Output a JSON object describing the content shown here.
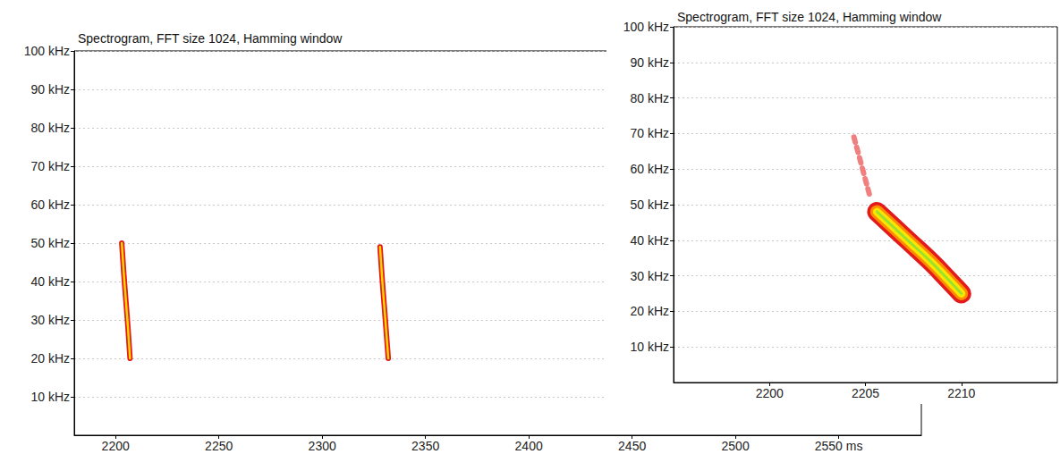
{
  "chart_data": [
    {
      "type": "line",
      "title": "Spectrogram, FFT size 1024, Hamming window",
      "xlim": [
        2180,
        2590
      ],
      "xticks": [
        2200,
        2250,
        2300,
        2350,
        2400,
        2450,
        2500,
        {
          "value": 2550,
          "label": "2550 ms"
        }
      ],
      "ylim": [
        0,
        100
      ],
      "yticks": [
        {
          "value": 10,
          "label": "10 kHz"
        },
        {
          "value": 20,
          "label": "20 kHz"
        },
        {
          "value": 30,
          "label": "30 kHz"
        },
        {
          "value": 40,
          "label": "40 kHz"
        },
        {
          "value": 50,
          "label": "50 kHz"
        },
        {
          "value": 60,
          "label": "60 kHz"
        },
        {
          "value": 70,
          "label": "70 kHz"
        },
        {
          "value": 80,
          "label": "80 kHz"
        },
        {
          "value": 90,
          "label": "90 kHz"
        },
        {
          "value": 100,
          "label": "100 kHz"
        }
      ],
      "grid": true,
      "series": [
        {
          "color": "#e31a1c",
          "line_style": "solid",
          "x": [
            2203,
            2204,
            2205,
            2206,
            2207
          ],
          "values": [
            50,
            42,
            35,
            28,
            20
          ]
        },
        {
          "color": "#e31a1c",
          "line_style": "solid",
          "x": [
            2328,
            2329,
            2330,
            2331,
            2332
          ],
          "values": [
            49,
            41,
            34,
            27,
            20
          ]
        }
      ]
    },
    {
      "type": "line",
      "title": "Spectrogram, FFT size 1024, Hamming window",
      "xlim": [
        2195,
        2215
      ],
      "xticks": [
        2200,
        2205,
        2210
      ],
      "ylim": [
        0,
        100
      ],
      "yticks": [
        {
          "value": 10,
          "label": "10 kHz"
        },
        {
          "value": 20,
          "label": "20 kHz"
        },
        {
          "value": 30,
          "label": "30 kHz"
        },
        {
          "value": 40,
          "label": "40 kHz"
        },
        {
          "value": 50,
          "label": "50 kHz"
        },
        {
          "value": 60,
          "label": "60 kHz"
        },
        {
          "value": 70,
          "label": "70 kHz"
        },
        {
          "value": 80,
          "label": "80 kHz"
        },
        {
          "value": 90,
          "label": "90 kHz"
        },
        {
          "value": 100,
          "label": "100 kHz"
        }
      ],
      "grid": true,
      "series": [
        {
          "color": "#f08080",
          "line_style": "dotted",
          "x": [
            2204.4,
            2204.8,
            2205.2
          ],
          "values": [
            69,
            61,
            53
          ]
        },
        {
          "color": "#e31a1c",
          "line_style": "solid",
          "x": [
            2205.6,
            2206.2,
            2207.2,
            2208.4,
            2209.3,
            2210.0
          ],
          "values": [
            48,
            45,
            40,
            34,
            29,
            25
          ]
        }
      ]
    }
  ]
}
